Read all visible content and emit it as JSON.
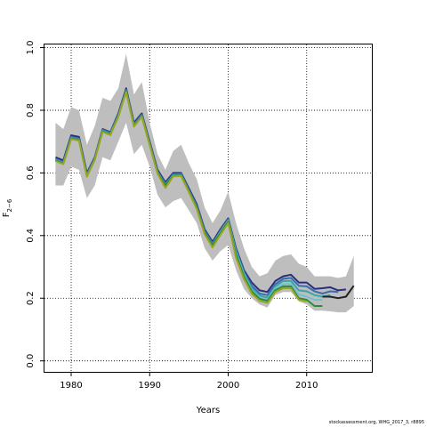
{
  "chart_data": {
    "type": "line",
    "xlabel": "Years",
    "ylabel": "F",
    "ylabel_subscript": "2−6",
    "xlim": [
      1976.6,
      2018.3
    ],
    "ylim": [
      -0.035,
      1.01
    ],
    "x_ticks": [
      1980,
      1990,
      2000,
      2010
    ],
    "y_ticks": [
      0.0,
      0.2,
      0.4,
      0.6,
      0.8,
      1.0
    ],
    "x_tick_labels": [
      "1980",
      "1990",
      "2000",
      "2010"
    ],
    "y_tick_labels": [
      "0.0",
      "0.2",
      "0.4",
      "0.6",
      "0.8",
      "1.0"
    ],
    "grid": "dotted",
    "colors": {
      "band_outer": "#bebebe",
      "band_inner": "#9fd6d6",
      "series": [
        "#2b2e7e",
        "#3b6bb0",
        "#39a6a6",
        "#6fc3cf",
        "#2e8b3a",
        "#9aa520",
        "#222222"
      ]
    },
    "band": {
      "x": [
        1978,
        1979,
        1980,
        1981,
        1982,
        1983,
        1984,
        1985,
        1986,
        1987,
        1988,
        1989,
        1990,
        1991,
        1992,
        1993,
        1994,
        1995,
        1996,
        1997,
        1998,
        1999,
        2000,
        2001,
        2002,
        2003,
        2004,
        2005,
        2006,
        2007,
        2008,
        2009,
        2010,
        2011,
        2012,
        2013,
        2014,
        2015,
        2016
      ],
      "lower": [
        0.56,
        0.56,
        0.62,
        0.61,
        0.52,
        0.56,
        0.65,
        0.64,
        0.7,
        0.76,
        0.66,
        0.69,
        0.62,
        0.53,
        0.49,
        0.51,
        0.52,
        0.48,
        0.44,
        0.36,
        0.32,
        0.35,
        0.37,
        0.29,
        0.23,
        0.2,
        0.18,
        0.17,
        0.21,
        0.22,
        0.22,
        0.19,
        0.18,
        0.16,
        0.16,
        0.158,
        0.155,
        0.155,
        0.175
      ],
      "upper": [
        0.76,
        0.74,
        0.81,
        0.8,
        0.69,
        0.75,
        0.84,
        0.83,
        0.87,
        0.98,
        0.85,
        0.89,
        0.76,
        0.66,
        0.61,
        0.67,
        0.69,
        0.63,
        0.58,
        0.49,
        0.44,
        0.48,
        0.54,
        0.44,
        0.36,
        0.3,
        0.27,
        0.28,
        0.32,
        0.335,
        0.34,
        0.31,
        0.3,
        0.27,
        0.27,
        0.27,
        0.265,
        0.27,
        0.335
      ]
    },
    "series": [
      {
        "x": [
          1978,
          1979,
          1980,
          1981,
          1982,
          1983,
          1984,
          1985,
          1986,
          1987,
          1988,
          1989,
          1990,
          1991,
          1992,
          1993,
          1994,
          1995,
          1996,
          1997,
          1998,
          1999,
          2000,
          2001,
          2002,
          2003,
          2004,
          2005,
          2006,
          2007,
          2008,
          2009,
          2010,
          2011,
          2012,
          2013,
          2014,
          2015
        ],
        "values": [
          0.65,
          0.64,
          0.72,
          0.715,
          0.6,
          0.65,
          0.74,
          0.73,
          0.79,
          0.87,
          0.76,
          0.79,
          0.7,
          0.61,
          0.57,
          0.6,
          0.6,
          0.55,
          0.5,
          0.42,
          0.38,
          0.42,
          0.455,
          0.36,
          0.29,
          0.25,
          0.225,
          0.22,
          0.255,
          0.27,
          0.275,
          0.25,
          0.25,
          0.23,
          0.232,
          0.235,
          0.225,
          0.228
        ]
      },
      {
        "x": [
          1978,
          1979,
          1980,
          1981,
          1982,
          1983,
          1984,
          1985,
          1986,
          1987,
          1988,
          1989,
          1990,
          1991,
          1992,
          1993,
          1994,
          1995,
          1996,
          1997,
          1998,
          1999,
          2000,
          2001,
          2002,
          2003,
          2004,
          2005,
          2006,
          2007,
          2008,
          2009,
          2010,
          2011,
          2012,
          2013,
          2014
        ],
        "values": [
          0.645,
          0.635,
          0.715,
          0.71,
          0.595,
          0.648,
          0.738,
          0.728,
          0.786,
          0.865,
          0.755,
          0.786,
          0.696,
          0.605,
          0.565,
          0.596,
          0.597,
          0.545,
          0.495,
          0.415,
          0.375,
          0.415,
          0.452,
          0.355,
          0.285,
          0.24,
          0.215,
          0.21,
          0.245,
          0.262,
          0.265,
          0.24,
          0.238,
          0.222,
          0.215,
          0.222,
          0.22
        ]
      },
      {
        "x": [
          1978,
          1979,
          1980,
          1981,
          1982,
          1983,
          1984,
          1985,
          1986,
          1987,
          1988,
          1989,
          1990,
          1991,
          1992,
          1993,
          1994,
          1995,
          1996,
          1997,
          1998,
          1999,
          2000,
          2001,
          2002,
          2003,
          2004,
          2005,
          2006,
          2007,
          2008,
          2009,
          2010,
          2011,
          2012,
          2013
        ],
        "values": [
          0.642,
          0.632,
          0.712,
          0.707,
          0.592,
          0.645,
          0.735,
          0.725,
          0.783,
          0.862,
          0.752,
          0.783,
          0.693,
          0.602,
          0.562,
          0.593,
          0.594,
          0.542,
          0.492,
          0.412,
          0.372,
          0.412,
          0.449,
          0.35,
          0.28,
          0.232,
          0.208,
          0.202,
          0.238,
          0.255,
          0.255,
          0.225,
          0.222,
          0.21,
          0.205,
          0.21
        ]
      },
      {
        "x": [
          1978,
          1979,
          1980,
          1981,
          1982,
          1983,
          1984,
          1985,
          1986,
          1987,
          1988,
          1989,
          1990,
          1991,
          1992,
          1993,
          1994,
          1995,
          1996,
          1997,
          1998,
          1999,
          2000,
          2001,
          2002,
          2003,
          2004,
          2005,
          2006,
          2007,
          2008,
          2009,
          2010,
          2011,
          2012
        ],
        "values": [
          0.64,
          0.63,
          0.71,
          0.705,
          0.59,
          0.643,
          0.733,
          0.723,
          0.781,
          0.86,
          0.75,
          0.781,
          0.69,
          0.6,
          0.56,
          0.591,
          0.592,
          0.54,
          0.49,
          0.41,
          0.37,
          0.41,
          0.447,
          0.345,
          0.275,
          0.225,
          0.202,
          0.195,
          0.232,
          0.245,
          0.245,
          0.212,
          0.205,
          0.195,
          0.195
        ]
      },
      {
        "x": [
          1978,
          1979,
          1980,
          1981,
          1982,
          1983,
          1984,
          1985,
          1986,
          1987,
          1988,
          1989,
          1990,
          1991,
          1992,
          1993,
          1994,
          1995,
          1996,
          1997,
          1998,
          1999,
          2000,
          2001,
          2002,
          2003,
          2004,
          2005,
          2006,
          2007,
          2008,
          2009,
          2010,
          2011,
          2012
        ],
        "values": [
          0.64,
          0.63,
          0.71,
          0.705,
          0.59,
          0.643,
          0.733,
          0.723,
          0.781,
          0.86,
          0.75,
          0.781,
          0.69,
          0.6,
          0.56,
          0.591,
          0.592,
          0.54,
          0.49,
          0.41,
          0.37,
          0.408,
          0.445,
          0.34,
          0.27,
          0.222,
          0.198,
          0.192,
          0.226,
          0.238,
          0.238,
          0.2,
          0.195,
          0.175,
          0.175
        ]
      },
      {
        "x": [
          1978,
          1979,
          1980,
          1981,
          1982,
          1983,
          1984,
          1985,
          1986,
          1987,
          1988,
          1989,
          1990,
          1991,
          1992,
          1993,
          1994,
          1995,
          1996,
          1997,
          1998,
          1999,
          2000,
          2001,
          2002,
          2003,
          2004,
          2005,
          2006,
          2007,
          2008,
          2009,
          2010
        ],
        "values": [
          0.638,
          0.628,
          0.708,
          0.703,
          0.588,
          0.641,
          0.731,
          0.721,
          0.779,
          0.858,
          0.748,
          0.779,
          0.688,
          0.598,
          0.552,
          0.589,
          0.59,
          0.538,
          0.485,
          0.405,
          0.362,
          0.402,
          0.44,
          0.33,
          0.262,
          0.215,
          0.192,
          0.185,
          0.22,
          0.232,
          0.232,
          0.195,
          0.19
        ]
      },
      {
        "x": [
          2012,
          2013,
          2014,
          2015,
          2016
        ],
        "values": [
          0.205,
          0.205,
          0.2,
          0.205,
          0.24
        ]
      }
    ]
  },
  "footer": "stockassessment.org, WHG_2017_3, r8895"
}
